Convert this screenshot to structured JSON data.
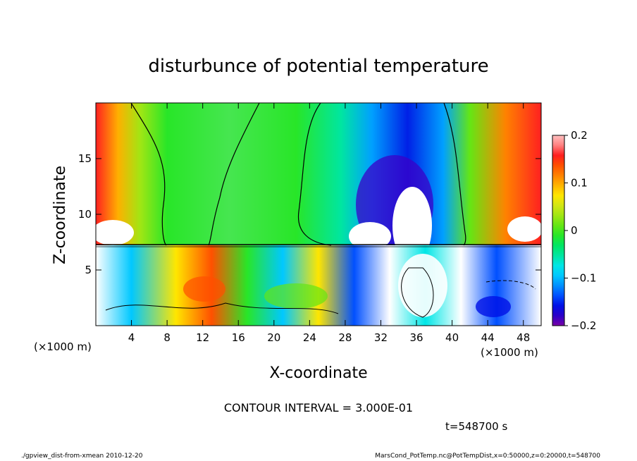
{
  "chart_data": {
    "type": "heatmap",
    "title": "disturbunce of potential temperature",
    "xlabel": "X-coordinate",
    "ylabel": "Z-coordinate",
    "x_unit": "(×1000 m)",
    "y_unit": "(×1000 m)",
    "xlim": [
      0,
      50
    ],
    "ylim": [
      0,
      20
    ],
    "x_ticks": [
      "4",
      "8",
      "12",
      "16",
      "20",
      "24",
      "28",
      "32",
      "36",
      "40",
      "44",
      "48"
    ],
    "y_ticks": [
      "5",
      "10",
      "15"
    ],
    "colorbar": {
      "range": [
        -0.2,
        0.2
      ],
      "tick_labels": [
        "0.2",
        "0.1",
        "0",
        "−0.1",
        "−0.2"
      ],
      "colors": [
        "#7a00a6",
        "#2a00c8",
        "#0010e6",
        "#0050ff",
        "#0090ff",
        "#00c8ff",
        "#00e6e6",
        "#00e6a0",
        "#00e664",
        "#28e628",
        "#64e614",
        "#a0e614",
        "#d2e614",
        "#ffe600",
        "#ffb400",
        "#ff8200",
        "#ff5000",
        "#ff1e1e",
        "#ff8080",
        "#ffc0c0"
      ]
    },
    "contour_interval": "CONTOUR INTERVAL = 3.000E-01",
    "time_label": "t=548700 s"
  },
  "footer": {
    "left": "./gpview_dist-from-xmean 2010-12-20",
    "right": "MarsCond_PotTemp.nc@PotTempDist,x=0:50000,z=0:20000,t=548700"
  }
}
